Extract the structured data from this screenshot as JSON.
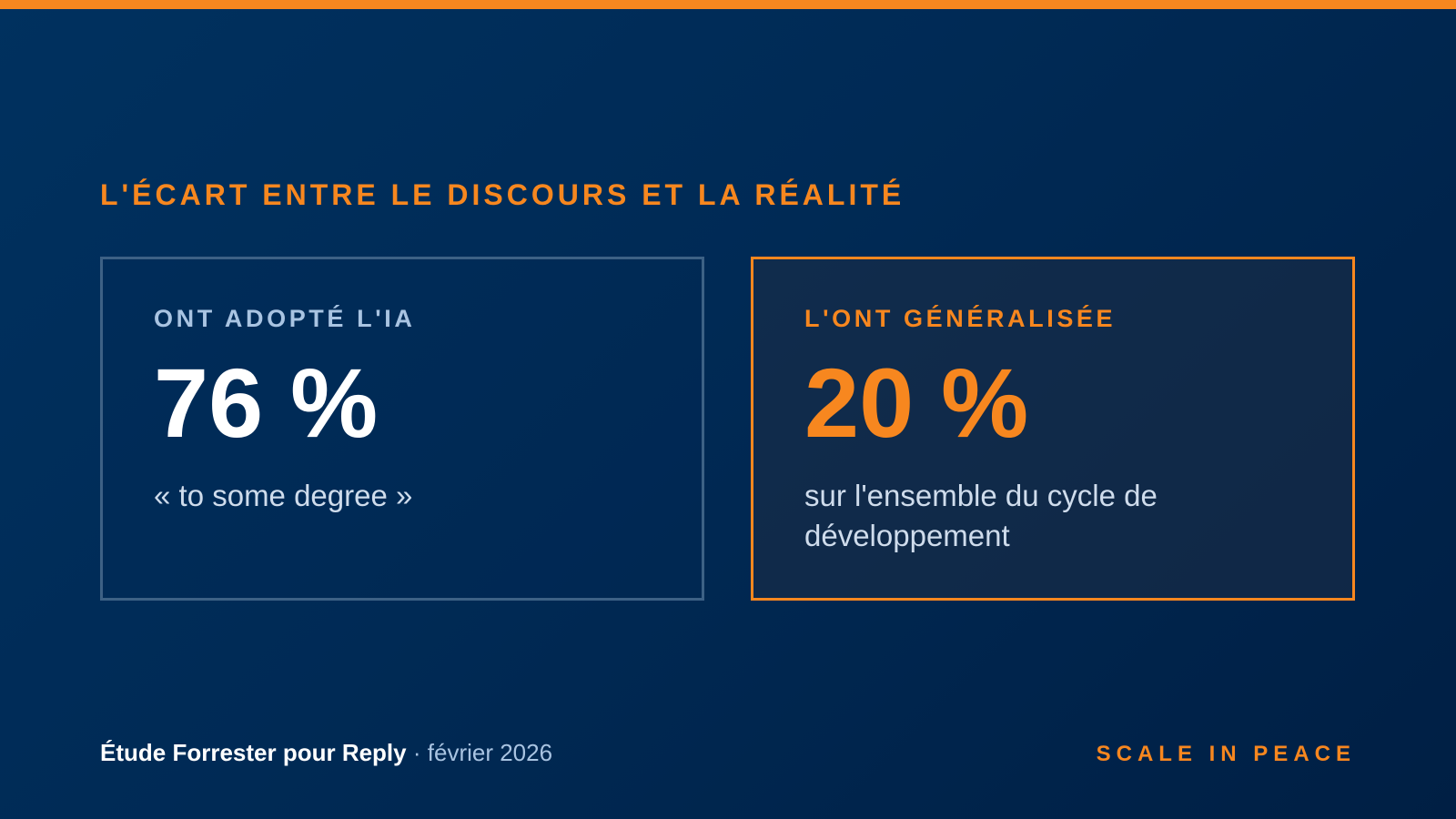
{
  "header": {
    "eyebrow": "L'ÉCART ENTRE LE DISCOURS ET LA RÉALITÉ"
  },
  "cards": [
    {
      "label": "ONT ADOPTÉ L'IA",
      "value": "76 %",
      "note": "« to some degree »"
    },
    {
      "label": "L'ONT GÉNÉRALISÉE",
      "value": "20 %",
      "note": "sur l'ensemble du cycle de développement"
    }
  ],
  "footer": {
    "source": "Étude Forrester pour Reply",
    "separator": "·",
    "date": "février 2026",
    "tagline": "SCALE IN PEACE"
  },
  "colors": {
    "accent": "#f7871f",
    "background": "#002a55",
    "muted_text": "#a9c4e2",
    "card_border": "#3d6185"
  }
}
